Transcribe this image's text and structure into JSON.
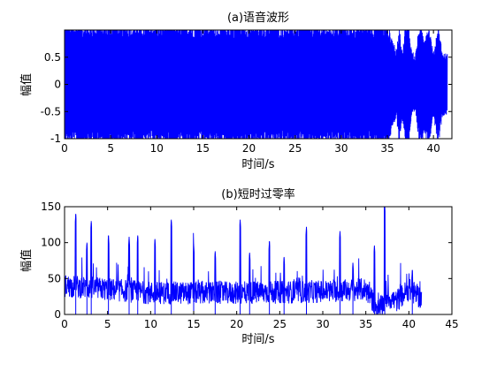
{
  "chart_data": [
    {
      "type": "line",
      "title": "(a)语音波形",
      "xlabel": "时间/s",
      "ylabel": "幅值",
      "xlim": [
        0,
        42
      ],
      "ylim": [
        -1,
        1
      ],
      "xticks": [
        0,
        5,
        10,
        15,
        20,
        25,
        30,
        35,
        40
      ],
      "yticks": [
        -1,
        -0.5,
        0,
        0.5
      ],
      "line_color": "#0000ff",
      "envelope": {
        "x": [
          0,
          2,
          5,
          10,
          15,
          20,
          25,
          30,
          33,
          35,
          36,
          36.3,
          36.6,
          37,
          37.3,
          37.6,
          38,
          38.5,
          39,
          39.5,
          40,
          40.5,
          41,
          41.5,
          42
        ],
        "amplitude": [
          1,
          1,
          1,
          1,
          1,
          1,
          1,
          1,
          1,
          1,
          0.55,
          1,
          0.55,
          1,
          1,
          0.6,
          0.45,
          1,
          0.8,
          1,
          0.5,
          1,
          0.5,
          0.5,
          0.5
        ]
      },
      "series": [
        {
          "values": []
        }
      ]
    },
    {
      "type": "line",
      "title": "(b)短时过零率",
      "xlabel": "时间/s",
      "ylabel": "幅值",
      "xlim": [
        0,
        45
      ],
      "ylim": [
        0,
        150
      ],
      "xticks": [
        0,
        5,
        10,
        15,
        20,
        25,
        30,
        35,
        40,
        45
      ],
      "yticks": [
        0,
        50,
        100,
        150
      ],
      "line_color": "#0000ff",
      "peaks": [
        {
          "x": 1.3,
          "y": 140
        },
        {
          "x": 2.6,
          "y": 100
        },
        {
          "x": 3.1,
          "y": 130
        },
        {
          "x": 5.1,
          "y": 110
        },
        {
          "x": 7.5,
          "y": 108
        },
        {
          "x": 8.5,
          "y": 110
        },
        {
          "x": 10.5,
          "y": 105
        },
        {
          "x": 12.4,
          "y": 132
        },
        {
          "x": 15.0,
          "y": 98
        },
        {
          "x": 17.5,
          "y": 88
        },
        {
          "x": 20.4,
          "y": 132
        },
        {
          "x": 21.5,
          "y": 86
        },
        {
          "x": 23.8,
          "y": 102
        },
        {
          "x": 25.5,
          "y": 80
        },
        {
          "x": 28.1,
          "y": 122
        },
        {
          "x": 32.0,
          "y": 116
        },
        {
          "x": 33.5,
          "y": 72
        },
        {
          "x": 36.0,
          "y": 96
        },
        {
          "x": 37.2,
          "y": 150
        },
        {
          "x": 40.4,
          "y": 62
        }
      ],
      "baseline": {
        "x": [
          0,
          10,
          20,
          30,
          35,
          36.5,
          37.5,
          38.5,
          40,
          41.5
        ],
        "y": [
          40,
          30,
          30,
          32,
          35,
          5,
          25,
          18,
          35,
          22
        ]
      },
      "series": [
        {
          "values": []
        }
      ]
    }
  ]
}
